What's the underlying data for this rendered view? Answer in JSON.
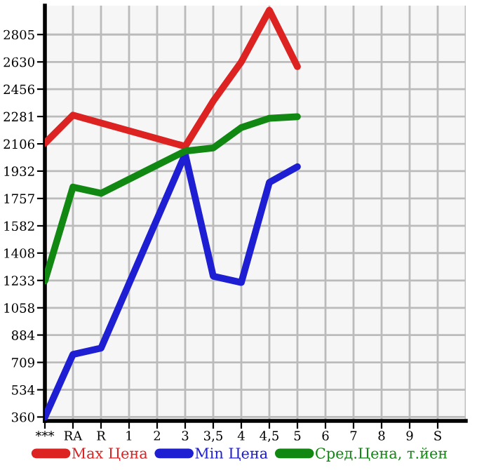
{
  "chart_data": {
    "type": "line",
    "categories": [
      "***",
      "RA",
      "R",
      "1",
      "2",
      "3",
      "3,5",
      "4",
      "4,5",
      "5",
      "6",
      "7",
      "8",
      "9",
      "S"
    ],
    "series": [
      {
        "name": "Max Цена",
        "color": "#dd2222",
        "values": [
          2110,
          2290,
          null,
          null,
          null,
          2090,
          2380,
          2630,
          2960,
          2600,
          null,
          null,
          null,
          null,
          null
        ]
      },
      {
        "name": "Min Цена",
        "color": "#1e1ed2",
        "values": [
          360,
          760,
          800,
          null,
          null,
          2040,
          1260,
          1220,
          1860,
          1960,
          null,
          null,
          null,
          null,
          null
        ]
      },
      {
        "name": "Сред.Цена, т.йен",
        "color": "#118811",
        "values": [
          1230,
          1830,
          1790,
          null,
          null,
          2060,
          2080,
          2210,
          2270,
          2280,
          null,
          null,
          null,
          null,
          null
        ]
      }
    ],
    "ylim": [
      335,
      2990
    ],
    "yticks": [
      360,
      534,
      709,
      884,
      1058,
      1233,
      1408,
      1582,
      1757,
      1932,
      2106,
      2281,
      2456,
      2630,
      2805
    ],
    "grid": true,
    "legend": "bottom",
    "marker": "none",
    "line_style": "solid"
  }
}
